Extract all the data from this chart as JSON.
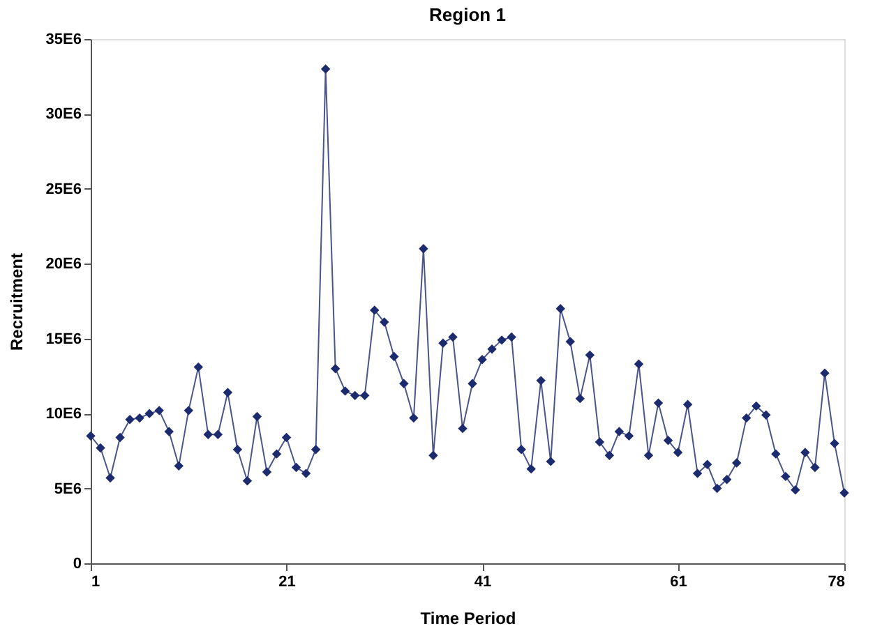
{
  "chart_data": {
    "type": "line",
    "title": "Region 1",
    "xlabel": "Time Period",
    "ylabel": "Recruitment",
    "x": [
      1,
      2,
      3,
      4,
      5,
      6,
      7,
      8,
      9,
      10,
      11,
      12,
      13,
      14,
      15,
      16,
      17,
      18,
      19,
      20,
      21,
      22,
      23,
      24,
      25,
      26,
      27,
      28,
      29,
      30,
      31,
      32,
      33,
      34,
      35,
      36,
      37,
      38,
      39,
      40,
      41,
      42,
      43,
      44,
      45,
      46,
      47,
      48,
      49,
      50,
      51,
      52,
      53,
      54,
      55,
      56,
      57,
      58,
      59,
      60,
      61,
      62,
      63,
      64,
      65,
      66,
      67,
      68,
      69,
      70,
      71,
      72,
      73,
      74,
      75,
      76,
      77,
      78
    ],
    "series": [
      {
        "color": "#1c2a6e",
        "values": [
          8500000,
          7700000,
          5700000,
          8400000,
          9600000,
          9700000,
          10000000,
          10200000,
          8800000,
          6500000,
          10200000,
          13100000,
          8600000,
          8600000,
          11400000,
          7600000,
          5500000,
          9800000,
          6100000,
          7300000,
          8400000,
          6400000,
          6000000,
          7600000,
          33000000,
          13000000,
          11500000,
          11200000,
          11200000,
          16900000,
          16100000,
          13800000,
          12000000,
          9700000,
          21000000,
          7200000,
          14700000,
          15100000,
          9000000,
          12000000,
          13600000,
          14300000,
          14900000,
          15100000,
          7600000,
          6300000,
          12200000,
          6800000,
          17000000,
          14800000,
          11000000,
          13900000,
          8100000,
          7200000,
          8800000,
          8500000,
          13300000,
          7200000,
          10700000,
          8200000,
          7400000,
          10600000,
          6000000,
          6600000,
          5000000,
          5600000,
          6700000,
          9700000,
          10500000,
          9900000,
          7300000,
          5800000,
          4900000,
          7400000,
          6400000,
          12700000,
          8000000,
          4700000
        ]
      }
    ],
    "xlim": [
      1,
      78
    ],
    "xticks": [
      1,
      21,
      41,
      61,
      78
    ],
    "ylim": [
      0,
      35000000
    ],
    "yticks": [
      0,
      {
        "value": 5000000,
        "label": "5E6"
      },
      {
        "value": 10000000,
        "label": "10E6"
      },
      {
        "value": 15000000,
        "label": "15E6"
      },
      {
        "value": 20000000,
        "label": "20E6"
      },
      {
        "value": 25000000,
        "label": "25E6"
      },
      {
        "value": 30000000,
        "label": "30E6"
      },
      {
        "value": 35000000,
        "label": "35E6"
      }
    ],
    "grid": false,
    "marker": "diamond",
    "line_style": "solid"
  }
}
